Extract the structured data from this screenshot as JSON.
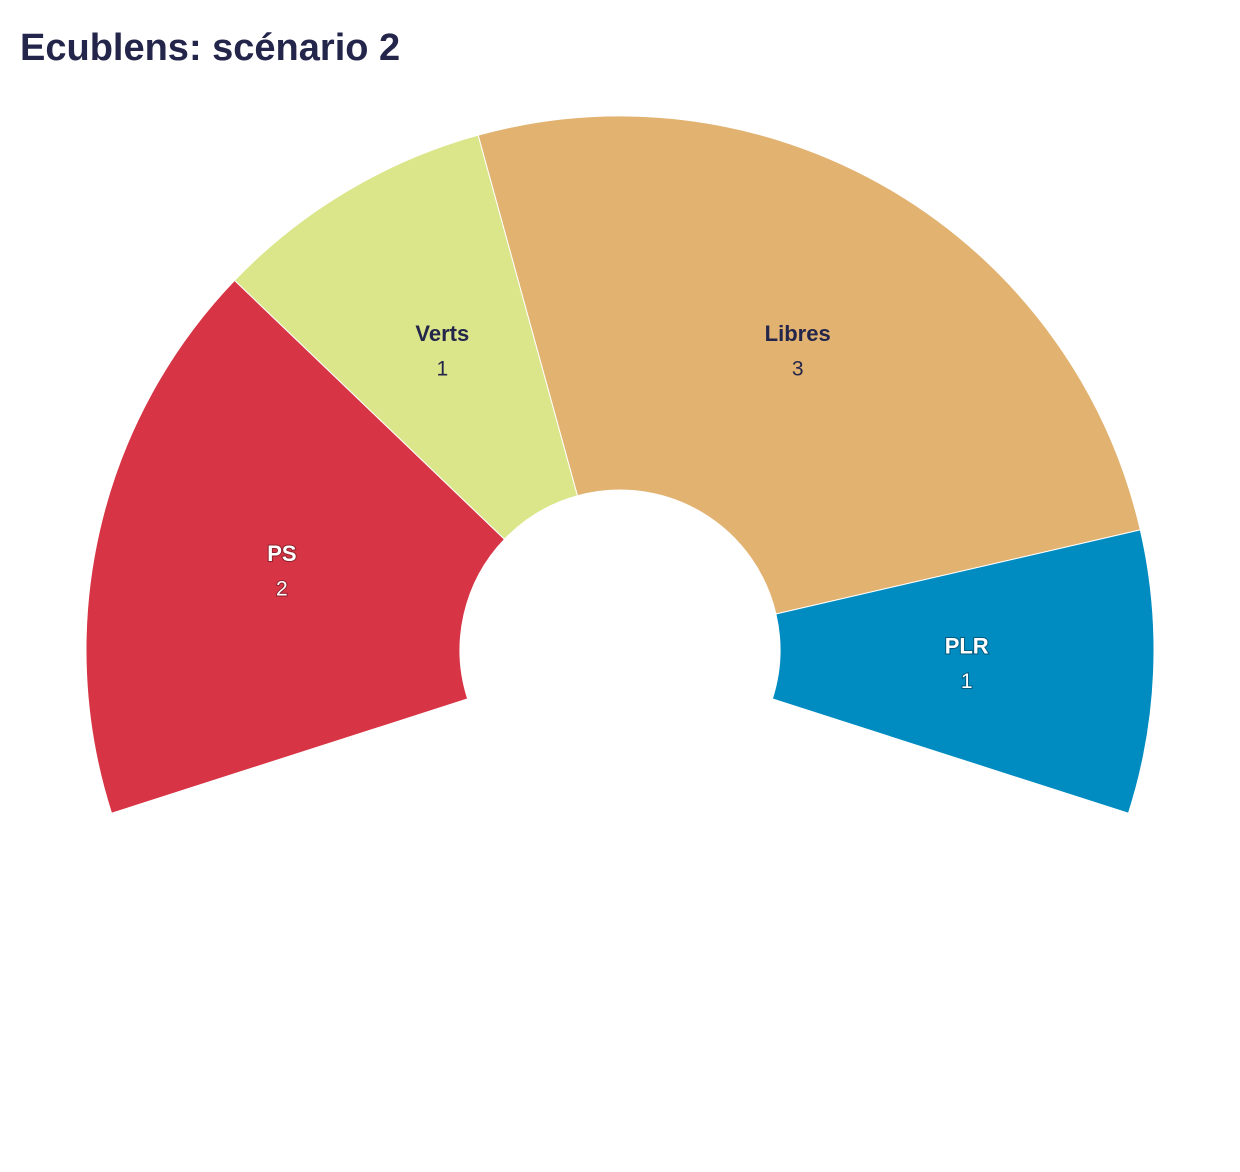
{
  "chart_data": {
    "type": "pie",
    "title": "Ecublens: scénario 2",
    "categories": [
      "PS",
      "Verts",
      "Libres",
      "PLR"
    ],
    "values": [
      2,
      1,
      3,
      1
    ],
    "colors": [
      "#d73445",
      "#dbe68a",
      "#e1b270",
      "#008bc1"
    ],
    "label_colors": [
      "#ffffff",
      "#23264a",
      "#23264a",
      "#ffffff"
    ]
  }
}
